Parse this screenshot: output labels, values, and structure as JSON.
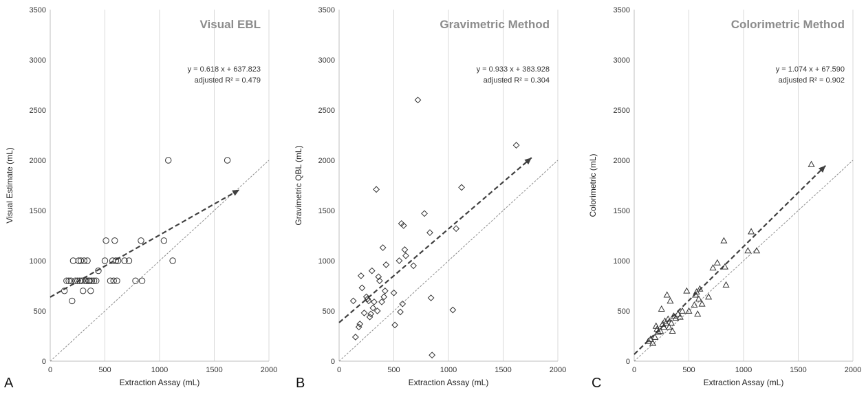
{
  "chart_data": [
    {
      "type": "scatter",
      "panel_label": "A",
      "title": "Visual EBL",
      "xlabel": "Extraction Assay (mL)",
      "ylabel": "Visual Estimate (mL)",
      "xlim": [
        0,
        2000
      ],
      "ylim": [
        0,
        3500
      ],
      "xticks": [
        "0",
        "500",
        "1000",
        "1500",
        "2000"
      ],
      "yticks": [
        "0",
        "500",
        "1000",
        "1500",
        "2000",
        "2500",
        "3000",
        "3500"
      ],
      "marker": "circle",
      "grid": "vertical",
      "equation": "y = 0.618 x + 637.823",
      "r2_text": "adjusted R² = 0.479",
      "regression": {
        "slope": 0.618,
        "intercept": 637.823,
        "x_end": 1730
      },
      "identity_line": true,
      "points": [
        [
          130,
          700
        ],
        [
          150,
          800
        ],
        [
          170,
          800
        ],
        [
          190,
          800
        ],
        [
          200,
          600
        ],
        [
          210,
          1000
        ],
        [
          230,
          800
        ],
        [
          250,
          800
        ],
        [
          260,
          1000
        ],
        [
          270,
          800
        ],
        [
          280,
          1000
        ],
        [
          290,
          800
        ],
        [
          300,
          700
        ],
        [
          310,
          1000
        ],
        [
          320,
          800
        ],
        [
          330,
          800
        ],
        [
          340,
          1000
        ],
        [
          350,
          800
        ],
        [
          360,
          800
        ],
        [
          370,
          700
        ],
        [
          380,
          800
        ],
        [
          400,
          800
        ],
        [
          420,
          800
        ],
        [
          440,
          900
        ],
        [
          500,
          1000
        ],
        [
          510,
          1200
        ],
        [
          550,
          800
        ],
        [
          570,
          1000
        ],
        [
          580,
          800
        ],
        [
          590,
          1200
        ],
        [
          600,
          1000
        ],
        [
          610,
          800
        ],
        [
          620,
          1000
        ],
        [
          680,
          1000
        ],
        [
          720,
          1000
        ],
        [
          780,
          800
        ],
        [
          830,
          1200
        ],
        [
          840,
          800
        ],
        [
          1040,
          1200
        ],
        [
          1080,
          2000
        ],
        [
          1120,
          1000
        ],
        [
          1620,
          2000
        ]
      ]
    },
    {
      "type": "scatter",
      "panel_label": "B",
      "title": "Gravimetric Method",
      "xlabel": "Extraction Assay (mL)",
      "ylabel": "Gravimetric QBL (mL)",
      "xlim": [
        0,
        2000
      ],
      "ylim": [
        0,
        3500
      ],
      "xticks": [
        "0",
        "500",
        "1000",
        "1500",
        "2000"
      ],
      "yticks": [
        "0",
        "500",
        "1000",
        "1500",
        "2000",
        "2500",
        "3000",
        "3500"
      ],
      "marker": "diamond",
      "grid": "vertical",
      "equation": "y = 0.933 x + 383.928",
      "r2_text": "adjusted R² = 0.304",
      "regression": {
        "slope": 0.933,
        "intercept": 383.928,
        "x_end": 1760
      },
      "identity_line": true,
      "points": [
        [
          130,
          600
        ],
        [
          150,
          240
        ],
        [
          180,
          340
        ],
        [
          190,
          370
        ],
        [
          200,
          850
        ],
        [
          210,
          730
        ],
        [
          230,
          480
        ],
        [
          250,
          640
        ],
        [
          260,
          620
        ],
        [
          270,
          600
        ],
        [
          280,
          440
        ],
        [
          290,
          470
        ],
        [
          300,
          900
        ],
        [
          310,
          530
        ],
        [
          320,
          590
        ],
        [
          340,
          1710
        ],
        [
          350,
          500
        ],
        [
          360,
          840
        ],
        [
          370,
          800
        ],
        [
          390,
          590
        ],
        [
          400,
          1130
        ],
        [
          410,
          640
        ],
        [
          420,
          700
        ],
        [
          430,
          960
        ],
        [
          500,
          680
        ],
        [
          510,
          360
        ],
        [
          550,
          1000
        ],
        [
          560,
          490
        ],
        [
          570,
          1370
        ],
        [
          580,
          570
        ],
        [
          590,
          1350
        ],
        [
          600,
          1110
        ],
        [
          610,
          1050
        ],
        [
          680,
          950
        ],
        [
          720,
          2600
        ],
        [
          780,
          1470
        ],
        [
          830,
          1280
        ],
        [
          840,
          630
        ],
        [
          850,
          60
        ],
        [
          1040,
          510
        ],
        [
          1070,
          1320
        ],
        [
          1120,
          1730
        ],
        [
          1620,
          2150
        ]
      ]
    },
    {
      "type": "scatter",
      "panel_label": "C",
      "title": "Colorimetric Method",
      "xlabel": "Extraction Assay (mL)",
      "ylabel": "Colorimetric (mL)",
      "xlim": [
        0,
        2000
      ],
      "ylim": [
        0,
        3500
      ],
      "xticks": [
        "0",
        "500",
        "1000",
        "1500",
        "2000"
      ],
      "yticks": [
        "0",
        "500",
        "1000",
        "1500",
        "2000",
        "2500",
        "3000",
        "3500"
      ],
      "marker": "triangle",
      "grid": "vertical",
      "equation": "y = 1.074 x + 67.590",
      "r2_text": "adjusted R² = 0.902",
      "regression": {
        "slope": 1.074,
        "intercept": 67.59,
        "x_end": 1750
      },
      "identity_line": true,
      "points": [
        [
          130,
          200
        ],
        [
          150,
          220
        ],
        [
          170,
          180
        ],
        [
          190,
          240
        ],
        [
          200,
          350
        ],
        [
          210,
          320
        ],
        [
          220,
          290
        ],
        [
          240,
          300
        ],
        [
          250,
          520
        ],
        [
          260,
          370
        ],
        [
          270,
          340
        ],
        [
          280,
          400
        ],
        [
          290,
          380
        ],
        [
          300,
          660
        ],
        [
          310,
          420
        ],
        [
          320,
          340
        ],
        [
          330,
          600
        ],
        [
          340,
          380
        ],
        [
          350,
          300
        ],
        [
          360,
          450
        ],
        [
          380,
          430
        ],
        [
          400,
          470
        ],
        [
          420,
          440
        ],
        [
          440,
          500
        ],
        [
          480,
          700
        ],
        [
          500,
          500
        ],
        [
          550,
          560
        ],
        [
          560,
          660
        ],
        [
          570,
          690
        ],
        [
          580,
          470
        ],
        [
          590,
          620
        ],
        [
          600,
          720
        ],
        [
          620,
          570
        ],
        [
          680,
          640
        ],
        [
          720,
          930
        ],
        [
          760,
          980
        ],
        [
          820,
          1200
        ],
        [
          830,
          940
        ],
        [
          840,
          760
        ],
        [
          1040,
          1100
        ],
        [
          1070,
          1290
        ],
        [
          1120,
          1100
        ],
        [
          1620,
          1960
        ]
      ]
    }
  ]
}
